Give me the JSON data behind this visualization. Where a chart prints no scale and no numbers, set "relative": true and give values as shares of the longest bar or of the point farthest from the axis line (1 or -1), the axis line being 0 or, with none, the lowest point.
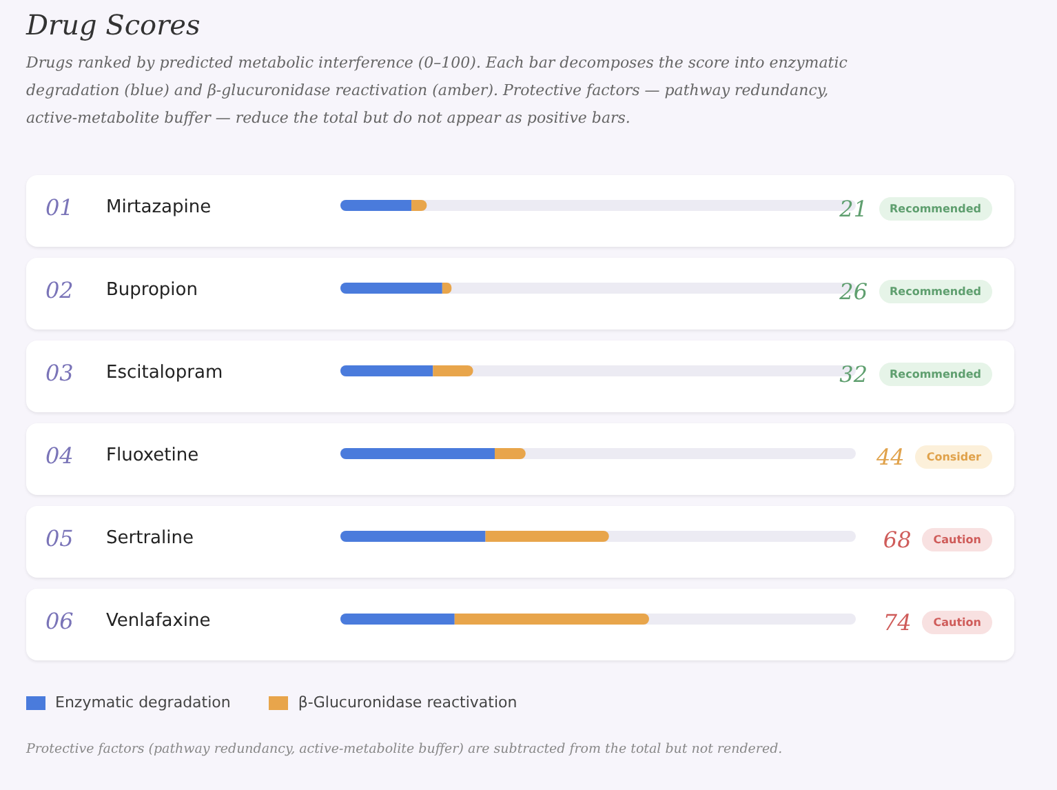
{
  "chart_data": {
    "type": "bar",
    "orientation": "horizontal",
    "stacked": true,
    "relative": true,
    "title": "Drug Scores",
    "subtitle": "Drugs ranked by predicted metabolic interference (0–100). Each bar decomposes the score into enzymatic degradation (blue) and β-glucuronidase reactivation (amber). Protective factors — pathway redundancy, active-metabolite buffer — reduce the total but do not appear as positive bars.",
    "categories": [
      "Mirtazapine",
      "Bupropion",
      "Escitalopram",
      "Fluoxetine",
      "Sertraline",
      "Venlafaxine"
    ],
    "series": [
      {
        "name": "Enzymatic degradation",
        "color": "#4a7bdc",
        "values": [
          0.23,
          0.33,
          0.3,
          0.5,
          0.47,
          0.37
        ]
      },
      {
        "name": "β-Glucuronidase reactivation",
        "color": "#e8a54b",
        "values": [
          0.05,
          0.03,
          0.13,
          0.1,
          0.4,
          0.63
        ]
      }
    ],
    "tick_labels": "y",
    "grid": false,
    "legend": "bottom",
    "annotations": [
      "01",
      "21",
      "Recommended",
      "02",
      "26",
      "Recommended",
      "03",
      "32",
      "Recommended",
      "04",
      "44",
      "Consider",
      "05",
      "68",
      "Caution",
      "06",
      "74",
      "Caution",
      "Protective factors (pathway redundancy, active-metabolite buffer) are subtracted from the total but not rendered."
    ]
  }
}
